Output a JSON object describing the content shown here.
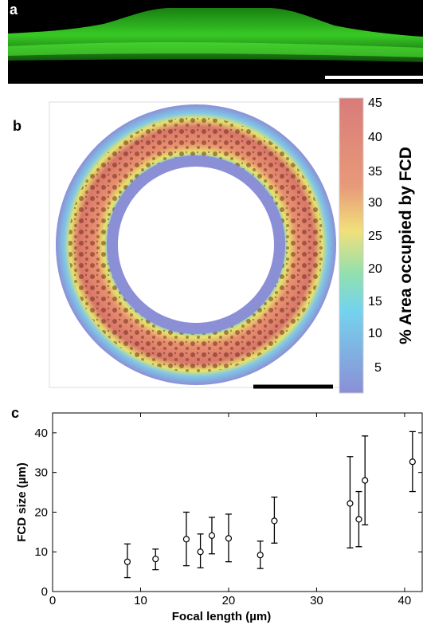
{
  "panels": {
    "a": {
      "label": "a"
    },
    "b": {
      "label": "b",
      "colorbar_ticks": [
        "45",
        "40",
        "35",
        "30",
        "25",
        "20",
        "15",
        "10",
        "5"
      ],
      "colorbar_title": "% Area occupied by FCD",
      "colors": {
        "high": "#c0504d",
        "mid": "#f5e36a",
        "low": "#8b8fd6"
      }
    },
    "c": {
      "label": "c"
    }
  },
  "chart_data": {
    "type": "scatter",
    "xlabel": "Focal length (µm)",
    "ylabel": "FCD size (µm)",
    "xlim": [
      0,
      42
    ],
    "ylim": [
      0,
      45
    ],
    "xticks": [
      "0",
      "10",
      "20",
      "30",
      "40"
    ],
    "yticks": [
      "0",
      "10",
      "20",
      "30",
      "40"
    ],
    "grid": false,
    "points": [
      {
        "x": 8.5,
        "y": 7.5,
        "err_low": 3.5,
        "err_high": 12
      },
      {
        "x": 11.7,
        "y": 8.2,
        "err_low": 5.5,
        "err_high": 10.7
      },
      {
        "x": 15.2,
        "y": 13.2,
        "err_low": 6.5,
        "err_high": 20
      },
      {
        "x": 16.8,
        "y": 10,
        "err_low": 6,
        "err_high": 14.5
      },
      {
        "x": 18.1,
        "y": 14.1,
        "err_low": 9.5,
        "err_high": 18.7
      },
      {
        "x": 20,
        "y": 13.4,
        "err_low": 7.5,
        "err_high": 19.5
      },
      {
        "x": 23.6,
        "y": 9.2,
        "err_low": 5.8,
        "err_high": 12.7
      },
      {
        "x": 25.2,
        "y": 17.8,
        "err_low": 12.2,
        "err_high": 23.8
      },
      {
        "x": 33.8,
        "y": 22.2,
        "err_low": 11,
        "err_high": 34
      },
      {
        "x": 34.8,
        "y": 18.2,
        "err_low": 11.3,
        "err_high": 25.2
      },
      {
        "x": 35.5,
        "y": 28,
        "err_low": 16.8,
        "err_high": 39.2
      },
      {
        "x": 40.9,
        "y": 32.7,
        "err_low": 25.2,
        "err_high": 40.3
      }
    ]
  }
}
